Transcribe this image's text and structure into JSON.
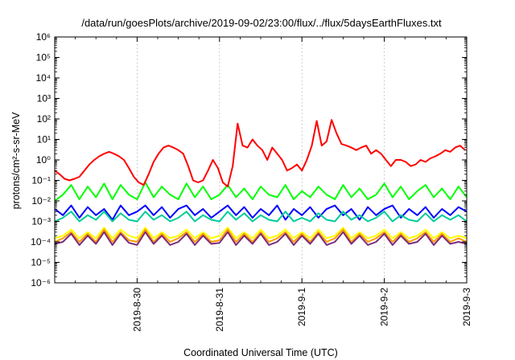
{
  "chart_data": {
    "type": "line",
    "title": "/data/run/goesPlots/archive/2019-09-02/23:00/flux/../flux/5daysEarthFluxes.txt",
    "xlabel": "Coordinated Universal Time (UTC)",
    "ylabel": "protons/cm²-s-sr-MeV",
    "x_ticks": [
      "2019-8-30",
      "2019-8-31",
      "2019-9-1",
      "2019-9-2",
      "2019-9-3"
    ],
    "y_ticks": [
      "10⁻⁶",
      "10⁻⁵",
      "10⁻⁴",
      "10⁻³",
      "10⁻²",
      "10⁻¹",
      "10⁰",
      "10¹",
      "10²",
      "10³",
      "10⁴",
      "10⁵",
      "10⁶"
    ],
    "x_range": [
      "2019-08-29",
      "2019-09-03"
    ],
    "ylim": [
      1e-06,
      1000000.0
    ],
    "y_scale": "log",
    "grid": true,
    "series": [
      {
        "color": "#ff0000",
        "x": [
          0,
          0.06,
          0.12,
          0.18,
          0.24,
          0.3,
          0.36,
          0.42,
          0.48,
          0.54,
          0.6,
          0.66,
          0.72,
          0.78,
          0.84,
          0.9,
          0.96,
          1.02,
          1.08,
          1.14,
          1.2,
          1.26,
          1.32,
          1.38,
          1.44,
          1.5,
          1.56,
          1.62,
          1.68,
          1.74,
          1.8,
          1.86,
          1.92,
          1.98,
          2.04,
          2.1,
          2.16,
          2.22,
          2.28,
          2.34,
          2.4,
          2.46,
          2.52,
          2.58,
          2.64,
          2.7,
          2.76,
          2.82,
          2.88,
          2.94,
          3.0,
          3.06,
          3.12,
          3.18,
          3.24,
          3.3,
          3.36,
          3.42,
          3.48,
          3.54,
          3.6,
          3.66,
          3.72,
          3.78,
          3.84,
          3.9,
          3.96,
          4.02,
          4.08,
          4.14,
          4.2,
          4.26,
          4.32,
          4.38,
          4.44,
          4.5,
          4.56,
          4.62,
          4.68,
          4.74,
          4.8,
          4.86,
          4.92,
          4.98
        ],
        "y": [
          0.3,
          0.2,
          0.12,
          0.1,
          0.12,
          0.15,
          0.3,
          0.6,
          1.0,
          1.5,
          2.0,
          2.5,
          2.0,
          1.5,
          1.0,
          0.4,
          0.15,
          0.08,
          0.06,
          0.2,
          0.8,
          2.0,
          4.0,
          5.0,
          4.0,
          3.0,
          2.0,
          0.5,
          0.1,
          0.08,
          0.1,
          0.3,
          1.0,
          0.4,
          0.08,
          0.05,
          0.5,
          60.0,
          5.0,
          4.0,
          10.0,
          5.0,
          3.0,
          1.0,
          4.0,
          2.0,
          1.0,
          0.3,
          0.4,
          0.6,
          0.3,
          1.0,
          5.0,
          80.0,
          5.0,
          8.0,
          90.0,
          20.0,
          6.0,
          5.0,
          4.0,
          3.0,
          4.0,
          5.0,
          2.0,
          3.0,
          2.0,
          1.0,
          0.5,
          1.0,
          1.0,
          0.8,
          0.5,
          0.6,
          1.0,
          0.8,
          1.2,
          1.5,
          2.0,
          3.0,
          2.5,
          4.0,
          5.0,
          3.0
        ]
      },
      {
        "color": "#00ff00",
        "x": [
          0,
          0.1,
          0.2,
          0.3,
          0.4,
          0.5,
          0.6,
          0.7,
          0.8,
          0.9,
          1.0,
          1.1,
          1.2,
          1.3,
          1.4,
          1.5,
          1.6,
          1.7,
          1.8,
          1.9,
          2.0,
          2.1,
          2.2,
          2.3,
          2.4,
          2.5,
          2.6,
          2.7,
          2.8,
          2.9,
          3.0,
          3.1,
          3.2,
          3.3,
          3.4,
          3.5,
          3.6,
          3.7,
          3.8,
          3.9,
          4.0,
          4.1,
          4.2,
          4.3,
          4.4,
          4.5,
          4.6,
          4.7,
          4.8,
          4.9,
          5.0
        ],
        "y": [
          0.01,
          0.02,
          0.06,
          0.012,
          0.05,
          0.015,
          0.07,
          0.012,
          0.06,
          0.02,
          0.012,
          0.08,
          0.015,
          0.05,
          0.02,
          0.012,
          0.07,
          0.015,
          0.05,
          0.012,
          0.02,
          0.06,
          0.015,
          0.04,
          0.012,
          0.05,
          0.02,
          0.015,
          0.06,
          0.012,
          0.03,
          0.015,
          0.05,
          0.02,
          0.012,
          0.06,
          0.015,
          0.04,
          0.012,
          0.02,
          0.07,
          0.015,
          0.05,
          0.012,
          0.03,
          0.06,
          0.015,
          0.04,
          0.012,
          0.05,
          0.015
        ]
      },
      {
        "color": "#0000ff",
        "x": [
          0,
          0.1,
          0.2,
          0.3,
          0.4,
          0.5,
          0.6,
          0.7,
          0.8,
          0.9,
          1.0,
          1.1,
          1.2,
          1.3,
          1.4,
          1.5,
          1.6,
          1.7,
          1.8,
          1.9,
          2.0,
          2.1,
          2.2,
          2.3,
          2.4,
          2.5,
          2.6,
          2.7,
          2.8,
          2.9,
          3.0,
          3.1,
          3.2,
          3.3,
          3.4,
          3.5,
          3.6,
          3.7,
          3.8,
          3.9,
          4.0,
          4.1,
          4.2,
          4.3,
          4.4,
          4.5,
          4.6,
          4.7,
          4.8,
          4.9,
          5.0
        ],
        "y": [
          0.004,
          0.002,
          0.006,
          0.0015,
          0.005,
          0.002,
          0.004,
          0.0012,
          0.006,
          0.002,
          0.003,
          0.006,
          0.002,
          0.005,
          0.0015,
          0.004,
          0.006,
          0.002,
          0.004,
          0.0015,
          0.003,
          0.006,
          0.002,
          0.005,
          0.0015,
          0.004,
          0.002,
          0.006,
          0.0012,
          0.004,
          0.002,
          0.005,
          0.0015,
          0.004,
          0.006,
          0.002,
          0.004,
          0.0012,
          0.005,
          0.002,
          0.004,
          0.006,
          0.0015,
          0.004,
          0.002,
          0.005,
          0.0015,
          0.004,
          0.002,
          0.005,
          0.003
        ]
      },
      {
        "color": "#00cc99",
        "x": [
          0,
          0.1,
          0.2,
          0.3,
          0.4,
          0.5,
          0.6,
          0.7,
          0.8,
          0.9,
          1.0,
          1.1,
          1.2,
          1.3,
          1.4,
          1.5,
          1.6,
          1.7,
          1.8,
          1.9,
          2.0,
          2.1,
          2.2,
          2.3,
          2.4,
          2.5,
          2.6,
          2.7,
          2.8,
          2.9,
          3.0,
          3.1,
          3.2,
          3.3,
          3.4,
          3.5,
          3.6,
          3.7,
          3.8,
          3.9,
          4.0,
          4.1,
          4.2,
          4.3,
          4.4,
          4.5,
          4.6,
          4.7,
          4.8,
          4.9,
          5.0
        ],
        "y": [
          0.001,
          0.0015,
          0.003,
          0.001,
          0.002,
          0.0012,
          0.003,
          0.001,
          0.0025,
          0.0012,
          0.001,
          0.003,
          0.0012,
          0.002,
          0.001,
          0.0015,
          0.003,
          0.001,
          0.002,
          0.0012,
          0.001,
          0.003,
          0.0012,
          0.0025,
          0.001,
          0.002,
          0.0012,
          0.001,
          0.003,
          0.001,
          0.0015,
          0.001,
          0.0025,
          0.0012,
          0.001,
          0.003,
          0.0012,
          0.002,
          0.001,
          0.0015,
          0.003,
          0.001,
          0.002,
          0.0012,
          0.001,
          0.0025,
          0.001,
          0.002,
          0.0012,
          0.002,
          0.001
        ]
      },
      {
        "color": "#ffff00",
        "x": [
          0,
          0.1,
          0.2,
          0.3,
          0.4,
          0.5,
          0.6,
          0.7,
          0.8,
          0.9,
          1.0,
          1.1,
          1.2,
          1.3,
          1.4,
          1.5,
          1.6,
          1.7,
          1.8,
          1.9,
          2.0,
          2.1,
          2.2,
          2.3,
          2.4,
          2.5,
          2.6,
          2.7,
          2.8,
          2.9,
          3.0,
          3.1,
          3.2,
          3.3,
          3.4,
          3.5,
          3.6,
          3.7,
          3.8,
          3.9,
          4.0,
          4.1,
          4.2,
          4.3,
          4.4,
          4.5,
          4.6,
          4.7,
          4.8,
          4.9,
          5.0
        ],
        "y": [
          0.00015,
          0.0002,
          0.0004,
          0.00015,
          0.0003,
          0.00015,
          0.0005,
          0.00015,
          0.0004,
          0.0002,
          0.00015,
          0.0005,
          0.00015,
          0.0003,
          0.00015,
          0.0002,
          0.0004,
          0.00015,
          0.0003,
          0.00015,
          0.0002,
          0.0005,
          0.00015,
          0.0003,
          0.00015,
          0.0004,
          0.00015,
          0.0002,
          0.0004,
          0.00015,
          0.0003,
          0.00015,
          0.0004,
          0.00015,
          0.0002,
          0.0005,
          0.00015,
          0.0003,
          0.00015,
          0.0002,
          0.0004,
          0.00015,
          0.0003,
          0.00015,
          0.0002,
          0.0004,
          0.00015,
          0.0003,
          0.00015,
          0.0002,
          0.00015
        ]
      },
      {
        "color": "#ff9900",
        "x": [
          0,
          0.1,
          0.2,
          0.3,
          0.4,
          0.5,
          0.6,
          0.7,
          0.8,
          0.9,
          1.0,
          1.1,
          1.2,
          1.3,
          1.4,
          1.5,
          1.6,
          1.7,
          1.8,
          1.9,
          2.0,
          2.1,
          2.2,
          2.3,
          2.4,
          2.5,
          2.6,
          2.7,
          2.8,
          2.9,
          3.0,
          3.1,
          3.2,
          3.3,
          3.4,
          3.5,
          3.6,
          3.7,
          3.8,
          3.9,
          4.0,
          4.1,
          4.2,
          4.3,
          4.4,
          4.5,
          4.6,
          4.7,
          4.8,
          4.9,
          5.0
        ],
        "y": [
          0.0001,
          0.00015,
          0.0003,
          0.0001,
          0.00025,
          0.0001,
          0.0004,
          0.0001,
          0.0003,
          0.00012,
          0.0001,
          0.0004,
          0.0001,
          0.00025,
          0.0001,
          0.00015,
          0.0003,
          0.0001,
          0.00025,
          0.0001,
          0.00012,
          0.0004,
          0.0001,
          0.00025,
          0.0001,
          0.0003,
          0.0001,
          0.00015,
          0.0003,
          0.0001,
          0.00025,
          0.0001,
          0.0003,
          0.0001,
          0.00015,
          0.0004,
          0.0001,
          0.00025,
          0.0001,
          0.00015,
          0.0003,
          0.0001,
          0.00025,
          0.0001,
          0.00015,
          0.0003,
          0.0001,
          0.00025,
          0.0001,
          0.00015,
          0.0001
        ]
      },
      {
        "color": "#7b2d7b",
        "x": [
          0,
          0.1,
          0.2,
          0.3,
          0.4,
          0.5,
          0.6,
          0.7,
          0.8,
          0.9,
          1.0,
          1.1,
          1.2,
          1.3,
          1.4,
          1.5,
          1.6,
          1.7,
          1.8,
          1.9,
          2.0,
          2.1,
          2.2,
          2.3,
          2.4,
          2.5,
          2.6,
          2.7,
          2.8,
          2.9,
          3.0,
          3.1,
          3.2,
          3.3,
          3.4,
          3.5,
          3.6,
          3.7,
          3.8,
          3.9,
          4.0,
          4.1,
          4.2,
          4.3,
          4.4,
          4.5,
          4.6,
          4.7,
          4.8,
          4.9,
          5.0
        ],
        "y": [
          8e-05,
          0.0001,
          0.00025,
          7e-05,
          0.0002,
          8e-05,
          0.0003,
          7e-05,
          0.00025,
          9e-05,
          7e-05,
          0.0003,
          8e-05,
          0.0002,
          7e-05,
          0.0001,
          0.00025,
          7e-05,
          0.0002,
          8e-05,
          9e-05,
          0.0003,
          7e-05,
          0.0002,
          8e-05,
          0.00025,
          7e-05,
          0.0001,
          0.00025,
          7e-05,
          0.0002,
          8e-05,
          0.00025,
          7e-05,
          0.0001,
          0.0003,
          8e-05,
          0.0002,
          7e-05,
          0.0001,
          0.00025,
          7e-05,
          0.0002,
          8e-05,
          0.0001,
          0.00025,
          7e-05,
          0.0002,
          8e-05,
          0.0001,
          8e-05
        ]
      }
    ]
  }
}
